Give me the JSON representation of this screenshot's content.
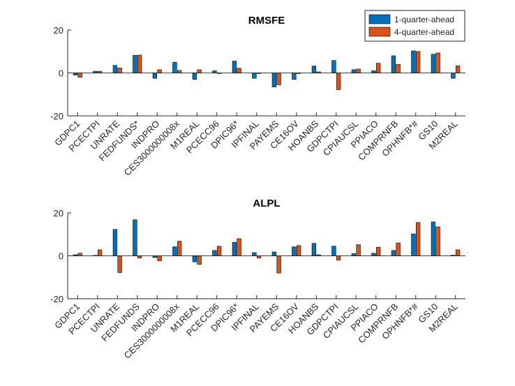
{
  "colors": {
    "series1": "#0072BD",
    "series2": "#D95319",
    "axis": "#262626"
  },
  "legend": {
    "location": "top-right",
    "entries": [
      "1-quarter-ahead",
      "4-quarter-ahead"
    ]
  },
  "chart_data": [
    {
      "type": "bar",
      "title": "RMSFE",
      "xlabel": "",
      "ylabel": "",
      "ylim": [
        -20,
        20
      ],
      "yticks": [
        -20,
        0,
        20
      ],
      "categories": [
        "GDPC1",
        "PCECTPI",
        "UNRATE",
        "FEDFUNDS*",
        "INDPRO",
        "CES3000000008x",
        "M1REAL",
        "PCECC96",
        "DPIC96*",
        "IPFINAL",
        "PAYEMS",
        "CE16OV",
        "HOANBS",
        "GDPCTPI",
        "CPIAUCSL",
        "PPIACO",
        "COMPRNFB",
        "OPHNFB*#",
        "GS10",
        "M2REAL"
      ],
      "series": [
        {
          "name": "1-quarter-ahead",
          "values": [
            -1.0,
            0.8,
            3.5,
            8.2,
            -2.5,
            5.0,
            -3.0,
            1.0,
            5.5,
            -2.5,
            -6.5,
            -3.0,
            3.2,
            5.8,
            1.5,
            1.0,
            8.0,
            10.3,
            8.7,
            -2.5
          ]
        },
        {
          "name": "4-quarter-ahead",
          "values": [
            -2.0,
            0.8,
            2.3,
            8.3,
            1.5,
            1.2,
            1.5,
            0.0,
            2.2,
            0.0,
            -5.5,
            0.0,
            0.5,
            -7.8,
            1.8,
            4.5,
            4.0,
            10.0,
            9.3,
            3.3
          ]
        }
      ]
    },
    {
      "type": "bar",
      "title": "ALPL",
      "xlabel": "",
      "ylabel": "",
      "ylim": [
        -20,
        20
      ],
      "yticks": [
        -20,
        0,
        20
      ],
      "categories": [
        "GDPC1",
        "PCECTPI",
        "UNRATE",
        "FEDFUNDS",
        "INDPRO",
        "CES3000000008x",
        "M1REAL",
        "PCECC96",
        "DPIC96*",
        "IPFINAL",
        "PAYEMS",
        "CE16OV",
        "HOANBS",
        "GDPCTPI",
        "CPIAUCSL",
        "PPIACO",
        "COMPRNFB",
        "OPHNFB*#",
        "GS10",
        "M2REAL"
      ],
      "series": [
        {
          "name": "1-quarter-ahead",
          "values": [
            0.5,
            0.2,
            12.3,
            16.8,
            -0.8,
            4.2,
            -2.8,
            2.5,
            6.3,
            1.5,
            1.8,
            4.2,
            5.8,
            4.5,
            1.0,
            1.2,
            2.5,
            10.2,
            15.8,
            0.3
          ]
        },
        {
          "name": "4-quarter-ahead",
          "values": [
            1.2,
            2.8,
            -7.8,
            -1.0,
            -2.3,
            6.8,
            -4.0,
            4.5,
            8.0,
            -1.0,
            -8.0,
            4.8,
            0.5,
            -2.0,
            5.2,
            4.0,
            6.0,
            15.5,
            13.5,
            2.8
          ]
        }
      ]
    }
  ]
}
